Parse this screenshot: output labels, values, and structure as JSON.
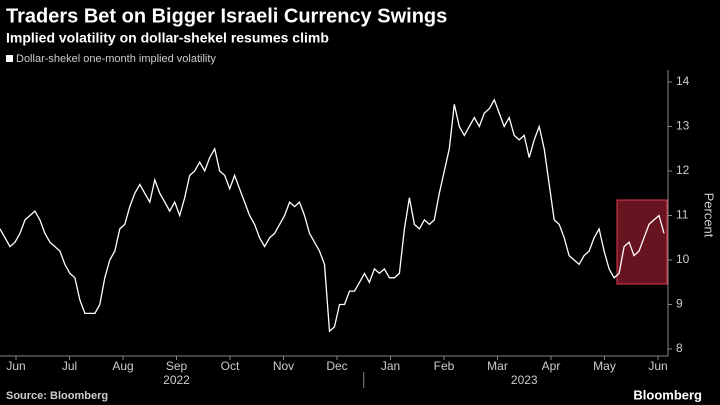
{
  "chart_data": {
    "type": "line",
    "title": "Traders Bet on Bigger Israeli Currency Swings",
    "subtitle": "Implied volatility on dollar-shekel resumes climb",
    "y_label": "Percent",
    "source": "Source: Bloomberg",
    "brand": "Bloomberg",
    "x_month_labels": [
      "Jun",
      "Jul",
      "Aug",
      "Sep",
      "Oct",
      "Nov",
      "Dec",
      "Jan",
      "Feb",
      "Mar",
      "Apr",
      "May",
      "Jun"
    ],
    "x_year_labels": [
      "2022",
      "2023"
    ],
    "series": [
      {
        "name": "Dollar-shekel one-month implied volatility",
        "color": "#ffffff",
        "values": [
          10.7,
          10.5,
          10.3,
          10.4,
          10.6,
          10.9,
          11.0,
          11.1,
          10.9,
          10.6,
          10.4,
          10.3,
          10.2,
          9.9,
          9.7,
          9.6,
          9.1,
          8.8,
          8.8,
          8.8,
          9.0,
          9.6,
          10.0,
          10.2,
          10.7,
          10.8,
          11.2,
          11.5,
          11.7,
          11.5,
          11.3,
          11.8,
          11.5,
          11.3,
          11.1,
          11.3,
          11.0,
          11.4,
          11.9,
          12.0,
          12.2,
          12.0,
          12.3,
          12.5,
          12.0,
          11.9,
          11.6,
          11.9,
          11.6,
          11.3,
          11.0,
          10.8,
          10.5,
          10.3,
          10.5,
          10.6,
          10.8,
          11.0,
          11.3,
          11.2,
          11.3,
          11.0,
          10.6,
          10.4,
          10.2,
          9.9,
          8.4,
          8.5,
          9.0,
          9.0,
          9.3,
          9.3,
          9.5,
          9.7,
          9.5,
          9.8,
          9.7,
          9.8,
          9.6,
          9.6,
          9.7,
          10.7,
          11.4,
          10.8,
          10.7,
          10.9,
          10.8,
          10.9,
          11.5,
          12.0,
          12.5,
          13.5,
          13.0,
          12.8,
          13.0,
          13.2,
          13.0,
          13.3,
          13.4,
          13.6,
          13.3,
          13.0,
          13.2,
          12.8,
          12.7,
          12.8,
          12.3,
          12.7,
          13.0,
          12.5,
          11.7,
          10.9,
          10.8,
          10.5,
          10.1,
          10.0,
          9.9,
          10.1,
          10.2,
          10.5,
          10.7,
          10.2,
          9.8,
          9.6,
          9.7,
          10.3,
          10.4,
          10.1,
          10.2,
          10.5,
          10.8,
          10.9,
          11.0,
          10.6
        ]
      }
    ],
    "ylim": [
      8,
      14
    ],
    "yticks": [
      8,
      9,
      10,
      11,
      12,
      13,
      14
    ],
    "grid": false
  }
}
